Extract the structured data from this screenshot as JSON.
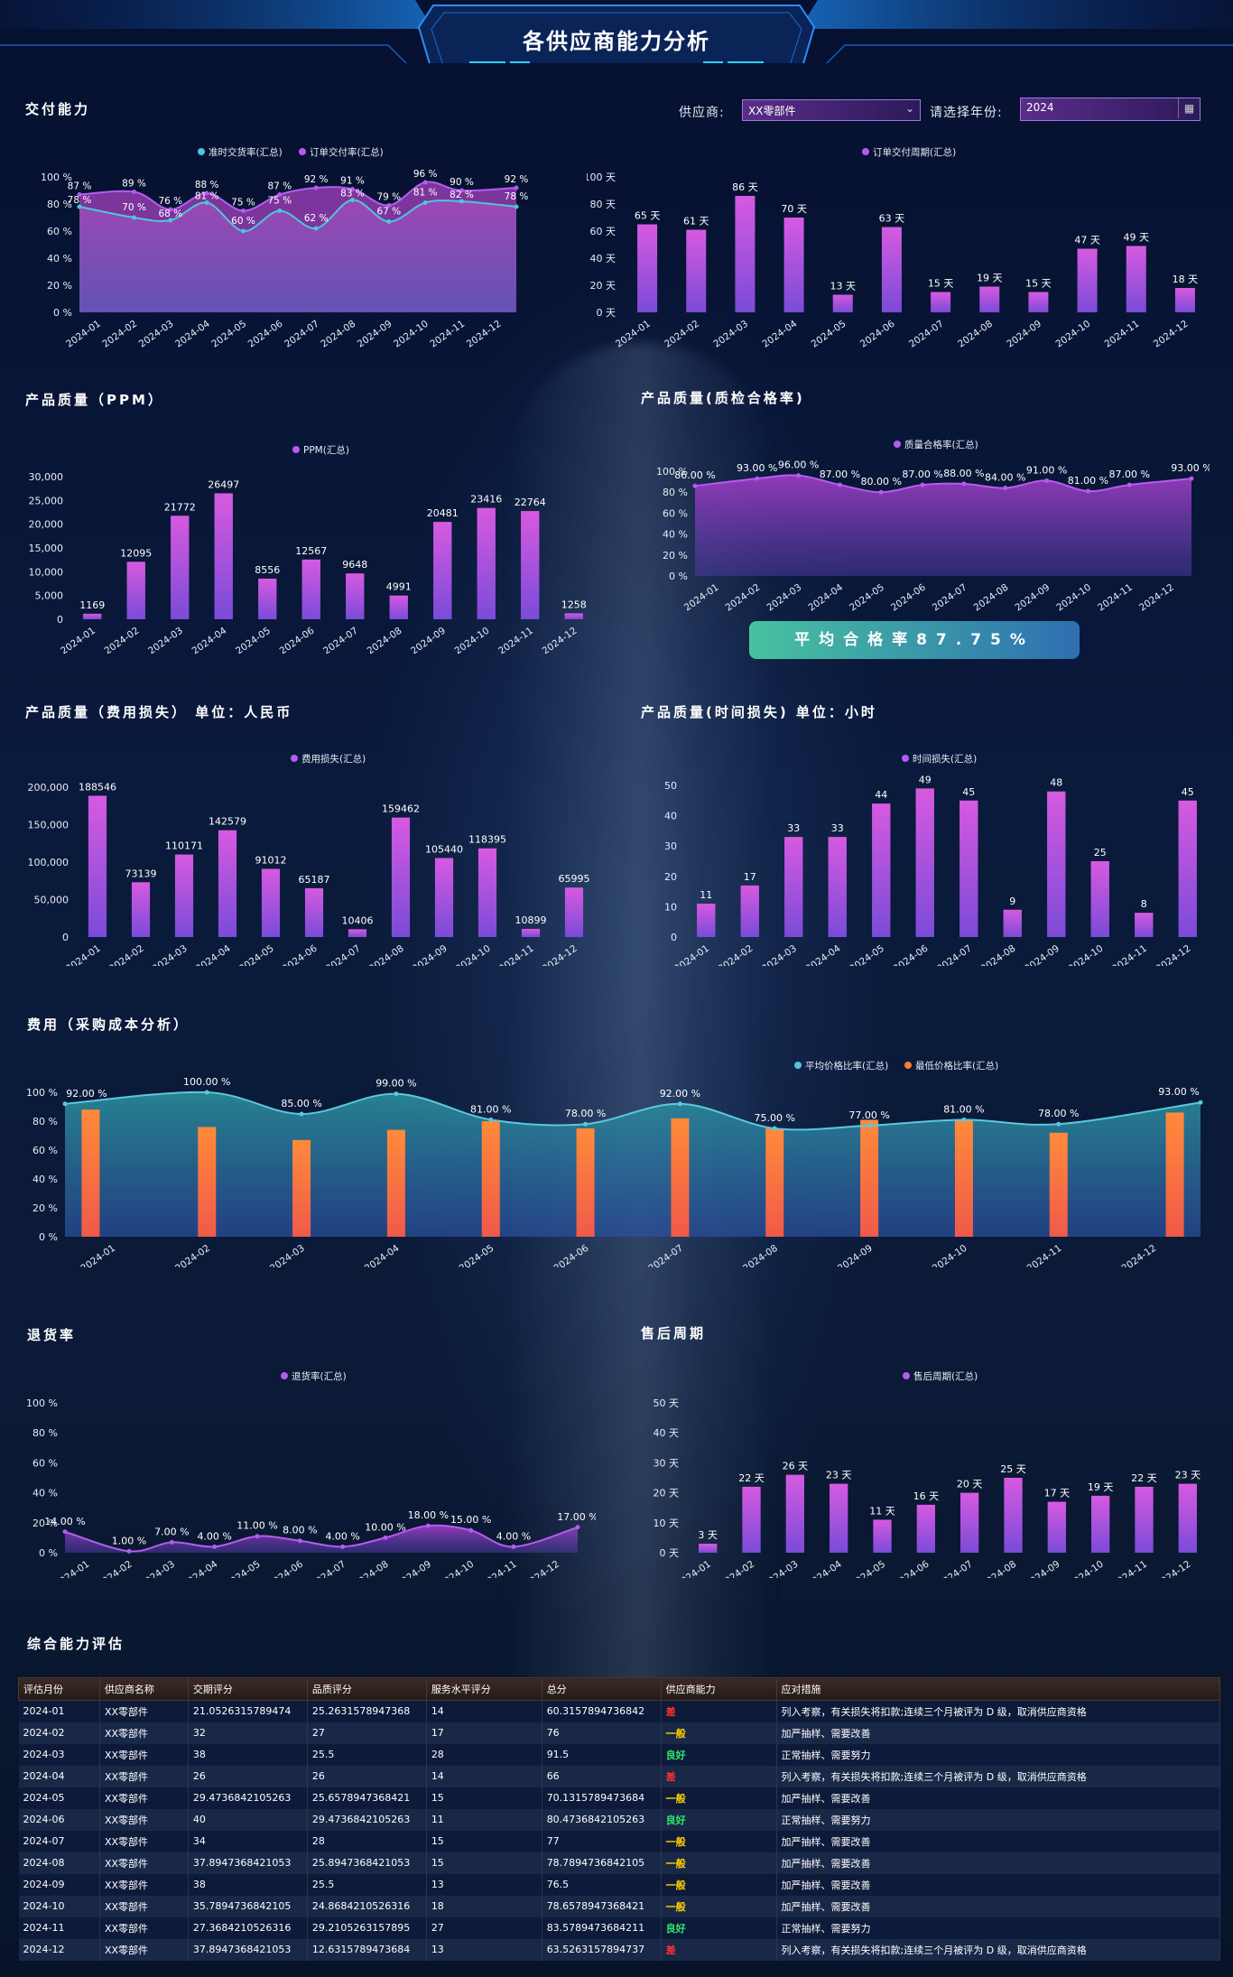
{
  "header": {
    "title": "各供应商能力分析"
  },
  "controls": {
    "supplier_label": "供应商:",
    "supplier_value": "XX零部件",
    "year_label": "请选择年份:",
    "year_value": "2024"
  },
  "sections": {
    "delivery": "交付能力",
    "ppm": "产品质量（PPM）",
    "pass_rate": "产品质量(质检合格率)",
    "cost_loss": "产品质量（费用损失）  单位：人民币",
    "time_loss": "产品质量(时间损失)  单位：小时",
    "cost": "费用（采购成本分析）",
    "return_rate": "退货率",
    "after_sales": "售后周期",
    "evaluation": "综合能力评估"
  },
  "avg_pass_rate": "平均合格率87.75%",
  "chart_data": [
    {
      "id": "delivery_rate",
      "type": "area",
      "categories": [
        "2024-01",
        "2024-02",
        "2024-03",
        "2024-04",
        "2024-05",
        "2024-06",
        "2024-07",
        "2024-08",
        "2024-09",
        "2024-10",
        "2024-11",
        "2024-12"
      ],
      "series": [
        {
          "name": "准时交货率(汇总)",
          "values": [
            78,
            70,
            68,
            81,
            60,
            75,
            62,
            83,
            67,
            81,
            82,
            78
          ],
          "labels": [
            "78 %",
            "70 %",
            "68 %",
            "81 %",
            "60 %",
            "75 %",
            "62 %",
            "83 %",
            "67 %",
            "81 %",
            "82 %",
            "78 %"
          ]
        },
        {
          "name": "订单交付率(汇总)",
          "values": [
            87,
            89,
            76,
            88,
            75,
            87,
            92,
            91,
            79,
            96,
            90,
            92
          ],
          "labels": [
            "87 %",
            "89 %",
            "76 %",
            "88 %",
            "75 %",
            "87 %",
            "92 %",
            "91 %",
            "79 %",
            "96 %",
            "90 %",
            "92 %"
          ]
        }
      ],
      "yticks": [
        "0 %",
        "20 %",
        "40 %",
        "60 %",
        "80 %",
        "100 %"
      ],
      "ylim": [
        0,
        100
      ]
    },
    {
      "id": "order_cycle",
      "type": "bar",
      "categories": [
        "2024-01",
        "2024-02",
        "2024-03",
        "2024-04",
        "2024-05",
        "2024-06",
        "2024-07",
        "2024-08",
        "2024-09",
        "2024-10",
        "2024-11",
        "2024-12"
      ],
      "series": [
        {
          "name": "订单交付周期(汇总)",
          "values": [
            65,
            61,
            86,
            70,
            13,
            63,
            15,
            19,
            15,
            47,
            49,
            18
          ],
          "labels": [
            "65 天",
            "61 天",
            "86 天",
            "70 天",
            "13 天",
            "63 天",
            "15 天",
            "19 天",
            "15 天",
            "47 天",
            "49 天",
            "18 天"
          ]
        }
      ],
      "yticks": [
        "0 天",
        "20 天",
        "40 天",
        "60 天",
        "80 天",
        "100 天"
      ],
      "ylim": [
        0,
        100
      ]
    },
    {
      "id": "ppm",
      "type": "bar",
      "categories": [
        "2024-01",
        "2024-02",
        "2024-03",
        "2024-04",
        "2024-05",
        "2024-06",
        "2024-07",
        "2024-08",
        "2024-09",
        "2024-10",
        "2024-11",
        "2024-12"
      ],
      "series": [
        {
          "name": "PPM(汇总)",
          "values": [
            1169,
            12095,
            21772,
            26497,
            8556,
            12567,
            9648,
            4991,
            20481,
            23416,
            22764,
            1258
          ],
          "labels": [
            "1169",
            "12095",
            "21772",
            "26497",
            "8556",
            "12567",
            "9648",
            "4991",
            "20481",
            "23416",
            "22764",
            "1258"
          ]
        }
      ],
      "yticks": [
        "0",
        "5,000",
        "10,000",
        "15,000",
        "20,000",
        "25,000",
        "30,000"
      ],
      "ylim": [
        0,
        30000
      ]
    },
    {
      "id": "pass_rate",
      "type": "area",
      "categories": [
        "2024-01",
        "2024-02",
        "2024-03",
        "2024-04",
        "2024-05",
        "2024-06",
        "2024-07",
        "2024-08",
        "2024-09",
        "2024-10",
        "2024-11",
        "2024-12"
      ],
      "series": [
        {
          "name": "质量合格率(汇总)",
          "values": [
            86,
            93,
            96,
            87,
            80,
            87,
            88,
            84,
            91,
            81,
            87,
            93
          ],
          "labels": [
            "86.00 %",
            "93.00 %",
            "96.00 %",
            "87.00 %",
            "80.00 %",
            "87.00 %",
            "88.00 %",
            "84.00 %",
            "91.00 %",
            "81.00 %",
            "87.00 %",
            "93.00 %"
          ]
        }
      ],
      "yticks": [
        "0 %",
        "20 %",
        "40 %",
        "60 %",
        "80 %",
        "100 %"
      ],
      "ylim": [
        0,
        100
      ]
    },
    {
      "id": "cost_loss",
      "type": "bar",
      "categories": [
        "2024-01",
        "2024-02",
        "2024-03",
        "2024-04",
        "2024-05",
        "2024-06",
        "2024-07",
        "2024-08",
        "2024-09",
        "2024-10",
        "2024-11",
        "2024-12"
      ],
      "series": [
        {
          "name": "费用损失(汇总)",
          "values": [
            188546,
            73139,
            110171,
            142579,
            91012,
            65187,
            10406,
            159462,
            105440,
            118395,
            10899,
            65995
          ],
          "labels": [
            "188546",
            "73139",
            "110171",
            "142579",
            "91012",
            "65187",
            "10406",
            "159462",
            "105440",
            "118395",
            "10899",
            "65995"
          ]
        }
      ],
      "yticks": [
        "0",
        "50,000",
        "100,000",
        "150,000",
        "200,000"
      ],
      "ylim": [
        0,
        200000
      ]
    },
    {
      "id": "time_loss",
      "type": "bar",
      "categories": [
        "2024-01",
        "2024-02",
        "2024-03",
        "2024-04",
        "2024-05",
        "2024-06",
        "2024-07",
        "2024-08",
        "2024-09",
        "2024-10",
        "2024-11",
        "2024-12"
      ],
      "series": [
        {
          "name": "时间损失(汇总)",
          "values": [
            11,
            17,
            33,
            33,
            44,
            49,
            45,
            9,
            48,
            25,
            8,
            45
          ],
          "labels": [
            "11",
            "17",
            "33",
            "33",
            "44",
            "49",
            "45",
            "9",
            "48",
            "25",
            "8",
            "45"
          ]
        }
      ],
      "yticks": [
        "0",
        "10",
        "20",
        "30",
        "40",
        "50"
      ],
      "ylim": [
        0,
        50
      ]
    },
    {
      "id": "purchase_cost",
      "type": "combo",
      "categories": [
        "2024-01",
        "2024-02",
        "2024-03",
        "2024-04",
        "2024-05",
        "2024-06",
        "2024-07",
        "2024-08",
        "2024-09",
        "2024-10",
        "2024-11",
        "2024-12"
      ],
      "series": [
        {
          "name": "平均价格比率(汇总)",
          "kind": "area",
          "values": [
            92,
            100,
            85,
            99,
            81,
            78,
            92,
            75,
            77,
            81,
            78,
            93
          ],
          "labels": [
            "92.00 %",
            "100.00 %",
            "85.00 %",
            "99.00 %",
            "81.00 %",
            "78.00 %",
            "92.00 %",
            "75.00 %",
            "77.00 %",
            "81.00 %",
            "78.00 %",
            "93.00 %"
          ]
        },
        {
          "name": "最低价格比率(汇总)",
          "kind": "bar",
          "values": [
            88,
            76,
            67,
            74,
            80,
            75,
            82,
            75,
            81,
            81,
            72,
            86
          ]
        }
      ],
      "yticks": [
        "0 %",
        "20 %",
        "40 %",
        "60 %",
        "80 %",
        "100 %"
      ],
      "ylim": [
        0,
        100
      ]
    },
    {
      "id": "return_rate",
      "type": "area",
      "categories": [
        "2024-01",
        "2024-02",
        "2024-03",
        "2024-04",
        "2024-05",
        "2024-06",
        "2024-07",
        "2024-08",
        "2024-09",
        "2024-10",
        "2024-11",
        "2024-12"
      ],
      "series": [
        {
          "name": "退货率(汇总)",
          "values": [
            14,
            1,
            7,
            4,
            11,
            8,
            4,
            10,
            18,
            15,
            4,
            17
          ],
          "labels": [
            "14.00 %",
            "1.00 %",
            "7.00 %",
            "4.00 %",
            "11.00 %",
            "8.00 %",
            "4.00 %",
            "10.00 %",
            "18.00 %",
            "15.00 %",
            "4.00 %",
            "17.00 %"
          ]
        }
      ],
      "yticks": [
        "0 %",
        "20 %",
        "40 %",
        "60 %",
        "80 %",
        "100 %"
      ],
      "ylim": [
        0,
        100
      ]
    },
    {
      "id": "after_sales",
      "type": "bar",
      "categories": [
        "2024-01",
        "2024-02",
        "2024-03",
        "2024-04",
        "2024-05",
        "2024-06",
        "2024-07",
        "2024-08",
        "2024-09",
        "2024-10",
        "2024-11",
        "2024-12"
      ],
      "series": [
        {
          "name": "售后周期(汇总)",
          "values": [
            3,
            22,
            26,
            23,
            11,
            16,
            20,
            25,
            17,
            19,
            22,
            23
          ],
          "labels": [
            "3 天",
            "22 天",
            "26 天",
            "23 天",
            "11 天",
            "16 天",
            "20 天",
            "25 天",
            "17 天",
            "19 天",
            "22 天",
            "23 天"
          ]
        }
      ],
      "yticks": [
        "0 天",
        "10 天",
        "20 天",
        "30 天",
        "40 天",
        "50 天"
      ],
      "ylim": [
        0,
        50
      ]
    }
  ],
  "evaluation": {
    "columns": [
      "评估月份",
      "供应商名称",
      "交期评分",
      "品质评分",
      "服务水平评分",
      "总分",
      "供应商能力",
      "应对措施"
    ],
    "rows": [
      [
        "2024-01",
        "XX零部件",
        "21.0526315789474",
        "25.2631578947368",
        "14",
        "60.3157894736842",
        "差",
        "列入考察，有关损失将扣款;连续三个月被评为 D 级，取消供应商资格"
      ],
      [
        "2024-02",
        "XX零部件",
        "32",
        "27",
        "17",
        "76",
        "一般",
        "加严抽样、需要改善"
      ],
      [
        "2024-03",
        "XX零部件",
        "38",
        "25.5",
        "28",
        "91.5",
        "良好",
        "正常抽样、需要努力"
      ],
      [
        "2024-04",
        "XX零部件",
        "26",
        "26",
        "14",
        "66",
        "差",
        "列入考察，有关损失将扣款;连续三个月被评为 D 级，取消供应商资格"
      ],
      [
        "2024-05",
        "XX零部件",
        "29.4736842105263",
        "25.6578947368421",
        "15",
        "70.1315789473684",
        "一般",
        "加严抽样、需要改善"
      ],
      [
        "2024-06",
        "XX零部件",
        "40",
        "29.4736842105263",
        "11",
        "80.4736842105263",
        "良好",
        "正常抽样、需要努力"
      ],
      [
        "2024-07",
        "XX零部件",
        "34",
        "28",
        "15",
        "77",
        "一般",
        "加严抽样、需要改善"
      ],
      [
        "2024-08",
        "XX零部件",
        "37.8947368421053",
        "25.8947368421053",
        "15",
        "78.7894736842105",
        "一般",
        "加严抽样、需要改善"
      ],
      [
        "2024-09",
        "XX零部件",
        "38",
        "25.5",
        "13",
        "76.5",
        "一般",
        "加严抽样、需要改善"
      ],
      [
        "2024-10",
        "XX零部件",
        "35.7894736842105",
        "24.8684210526316",
        "18",
        "78.6578947368421",
        "一般",
        "加严抽样、需要改善"
      ],
      [
        "2024-11",
        "XX零部件",
        "27.3684210526316",
        "29.2105263157895",
        "27",
        "83.5789473684211",
        "良好",
        "正常抽样、需要努力"
      ],
      [
        "2024-12",
        "XX零部件",
        "37.8947368421053",
        "12.6315789473684",
        "13",
        "63.5263157894737",
        "差",
        "列入考察，有关损失将扣款;连续三个月被评为 D 级，取消供应商资格"
      ]
    ],
    "level_colors": {
      "差": "#ff3030",
      "一般": "#ffd400",
      "良好": "#2ee86a"
    }
  },
  "colors": {
    "accent_purple": "#b45cf0",
    "accent_cyan": "#4fc6d8",
    "accent_orange": "#ff7a30"
  }
}
